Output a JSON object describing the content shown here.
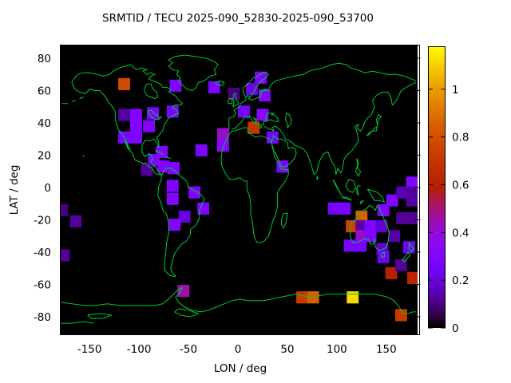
{
  "title": "SRMTID / TECU 2025-090_52830-2025-090_53700",
  "chart_data": {
    "type": "heatmap",
    "title": "SRMTID / TECU 2025-090_52830-2025-090_53700",
    "xlabel": "LON / deg",
    "ylabel": "LAT / deg",
    "xlim": [
      -180,
      180
    ],
    "ylim": [
      -90,
      90
    ],
    "xticks": [
      -150,
      -100,
      -50,
      0,
      50,
      100,
      150
    ],
    "yticks": [
      80,
      60,
      40,
      20,
      0,
      -20,
      -40,
      -60,
      -80
    ],
    "grid": false,
    "background_color": "#000000",
    "coastline_color": "#00c832",
    "palette": "gnuplot default pm3d (black-violet-magenta-red-orange-yellow, rgbformulae 7,5,15)",
    "colorbar": {
      "position": "right",
      "min": 0,
      "max": 1.18,
      "ticks": [
        0,
        0.2,
        0.4,
        0.6,
        0.8,
        1
      ],
      "tick_labels": [
        "0",
        "0.2",
        "0.4",
        "0.6",
        "0.8",
        "1"
      ]
    },
    "cell_size_deg": {
      "lon": 12,
      "lat": 7.5
    },
    "cells_format": [
      "lon_center_deg",
      "lat_center_deg",
      "value_TECU"
    ],
    "cells": [
      [
        -115,
        64,
        0.78
      ],
      [
        -63,
        63,
        0.3
      ],
      [
        -24,
        62,
        0.28
      ],
      [
        23,
        68,
        0.3
      ],
      [
        14,
        61,
        0.22
      ],
      [
        -4,
        58,
        0.1
      ],
      [
        27,
        57,
        0.3
      ],
      [
        -115,
        45,
        0.13
      ],
      [
        -103,
        45,
        0.3
      ],
      [
        -86,
        46,
        0.28
      ],
      [
        -66,
        47,
        0.27
      ],
      [
        -103,
        38,
        0.3
      ],
      [
        -90,
        38,
        0.3
      ],
      [
        -115,
        31,
        0.28
      ],
      [
        -103,
        31,
        0.3
      ],
      [
        -37,
        23,
        0.28
      ],
      [
        6,
        47,
        0.26
      ],
      [
        25,
        45,
        0.32
      ],
      [
        16,
        37,
        0.7
      ],
      [
        -15,
        33,
        0.42
      ],
      [
        -15,
        26,
        0.32
      ],
      [
        35,
        31,
        0.27
      ],
      [
        45,
        13,
        0.28
      ],
      [
        -77,
        22,
        0.3
      ],
      [
        -85,
        17,
        0.3
      ],
      [
        -75,
        13,
        0.3
      ],
      [
        -65,
        12,
        0.3
      ],
      [
        -92,
        11,
        0.12
      ],
      [
        -66,
        1,
        0.3
      ],
      [
        -66,
        -7,
        0.3
      ],
      [
        -44,
        -3,
        0.3
      ],
      [
        -35,
        -13,
        0.3
      ],
      [
        -54,
        -18,
        0.2
      ],
      [
        -64,
        -23,
        0.3
      ],
      [
        -55,
        -64,
        0.45
      ],
      [
        -178,
        -14,
        0.1
      ],
      [
        -164,
        -21,
        0.12
      ],
      [
        -176,
        -42,
        0.12
      ],
      [
        97,
        -13,
        0.27
      ],
      [
        108,
        -13,
        0.27
      ],
      [
        125,
        -18,
        0.85
      ],
      [
        115,
        -24,
        0.75
      ],
      [
        125,
        -24,
        0.13
      ],
      [
        134,
        -24,
        0.3
      ],
      [
        145,
        -24,
        0.18
      ],
      [
        125,
        -30,
        0.42
      ],
      [
        134,
        -30,
        0.3
      ],
      [
        158,
        -30,
        0.13
      ],
      [
        113,
        -36,
        0.27
      ],
      [
        124,
        -36,
        0.27
      ],
      [
        147,
        -14,
        0.3
      ],
      [
        156,
        -8,
        0.3
      ],
      [
        146,
        -38,
        0.18
      ],
      [
        147,
        -43,
        0.25
      ],
      [
        173,
        -37,
        0.25
      ],
      [
        176,
        3,
        0.3
      ],
      [
        166,
        -3,
        0.15
      ],
      [
        177,
        -3,
        0.12
      ],
      [
        176,
        -8,
        0.13
      ],
      [
        166,
        -19,
        0.12
      ],
      [
        177,
        -19,
        0.12
      ],
      [
        155,
        -53,
        0.6
      ],
      [
        177,
        -56,
        0.62
      ],
      [
        165,
        -48,
        0.12
      ],
      [
        65,
        -68,
        0.72
      ],
      [
        76,
        -68,
        0.85
      ],
      [
        116,
        -68,
        1.12
      ],
      [
        165,
        -79,
        0.72
      ]
    ]
  }
}
